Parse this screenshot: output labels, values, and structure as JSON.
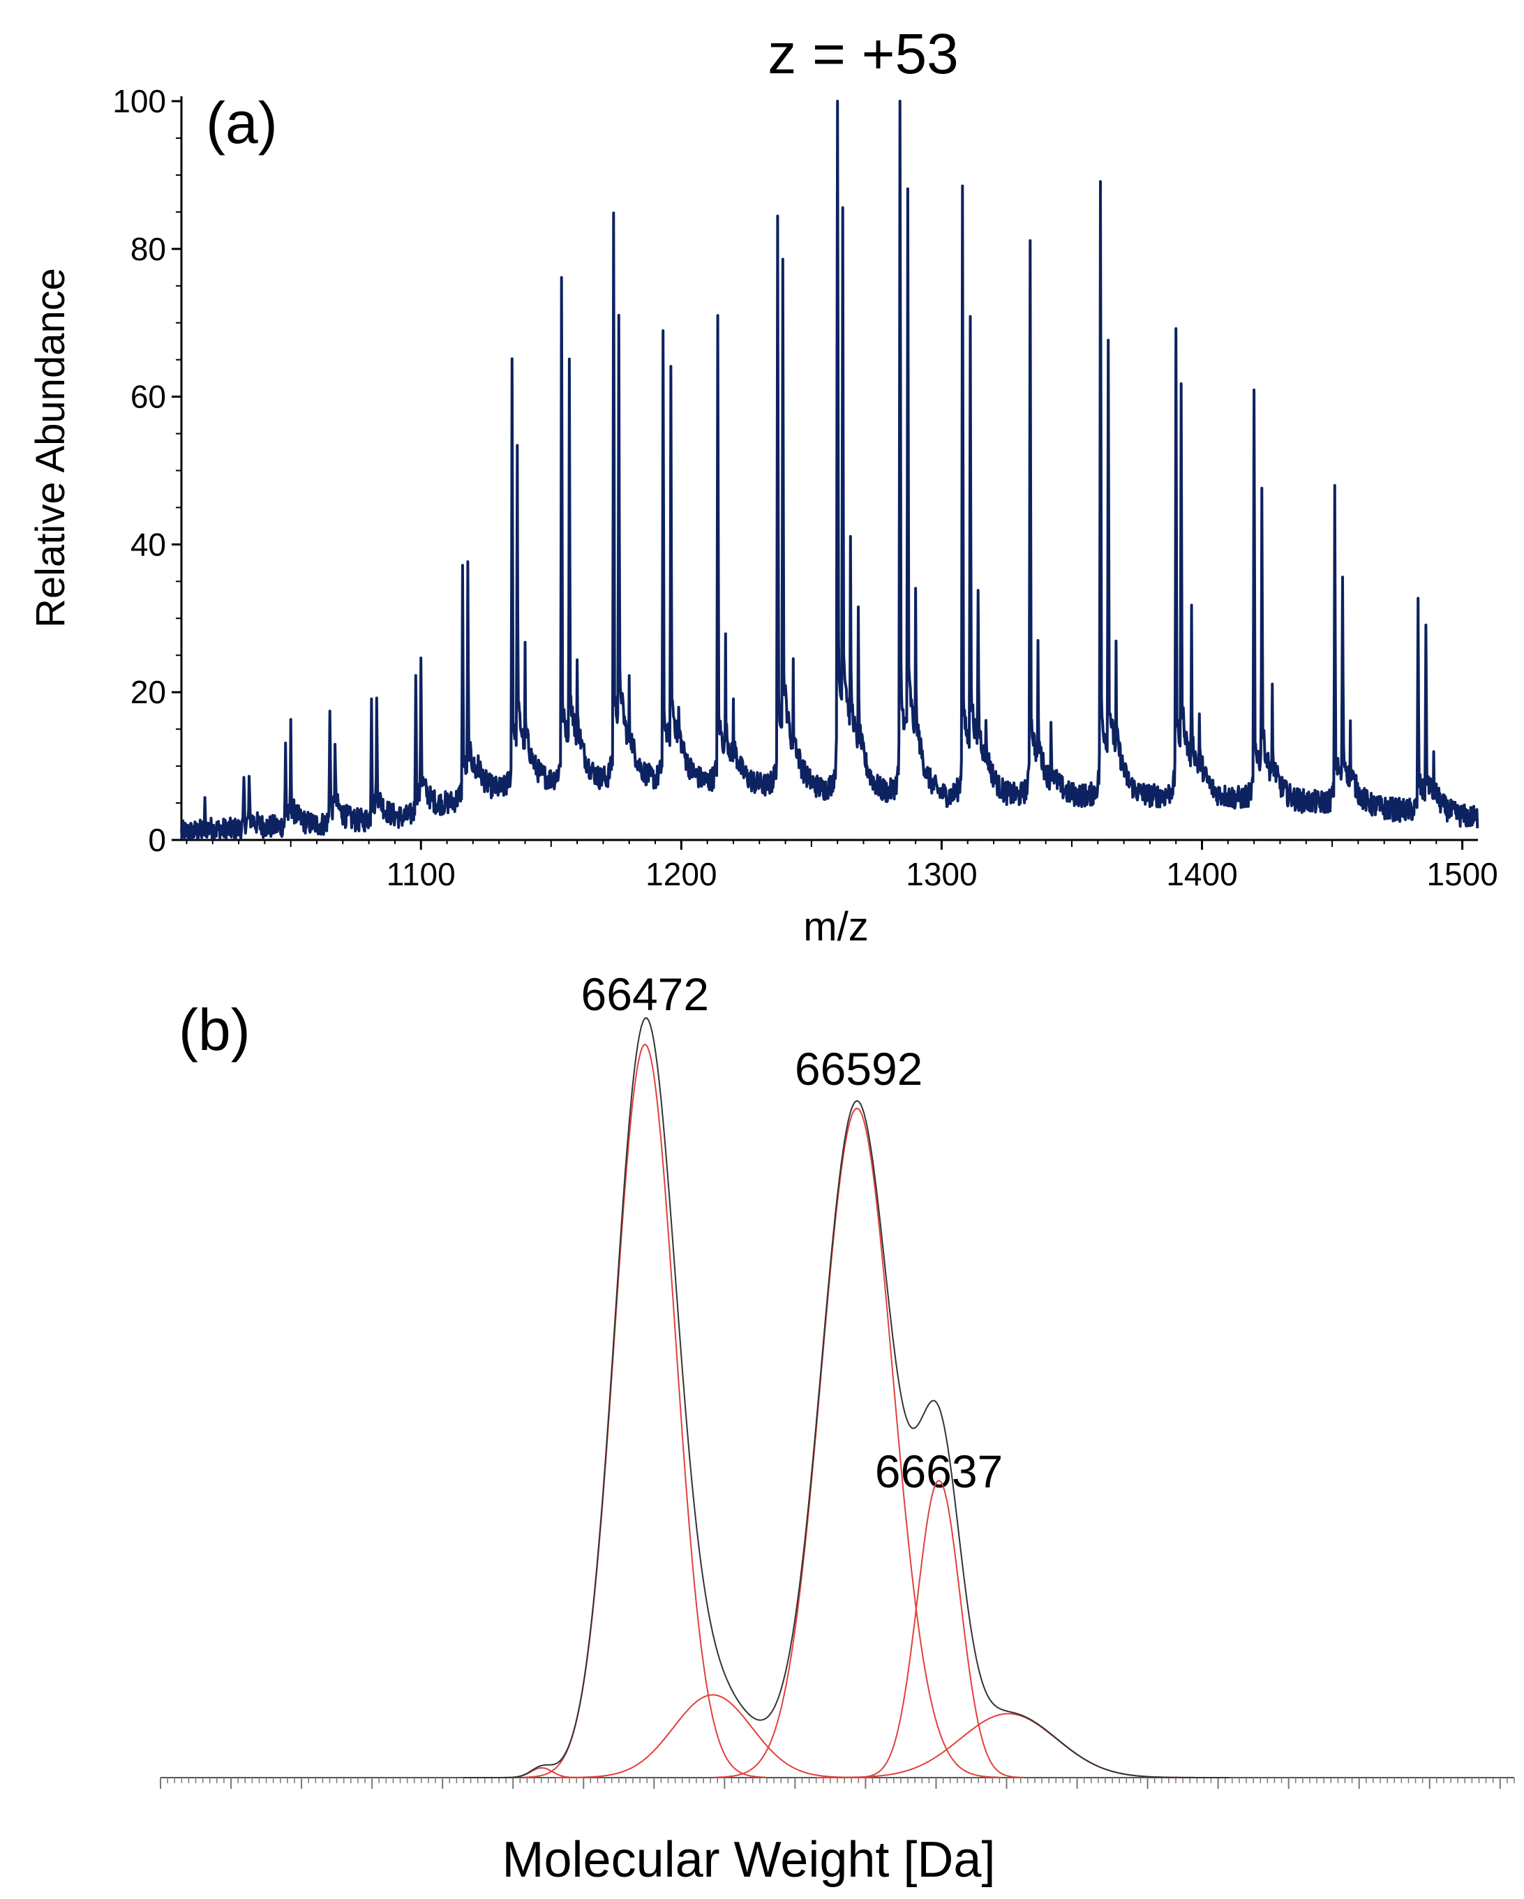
{
  "chart_data": [
    {
      "panel": "(a)",
      "type": "line",
      "title": "z = +53",
      "xlabel": "m/z",
      "ylabel": "Relative Abundance",
      "xlim": [
        1008,
        1506
      ],
      "ylim": [
        0,
        100
      ],
      "x_ticks": [
        1100,
        1200,
        1300,
        1400,
        1500
      ],
      "x_tick_labels": [
        "1100",
        "1200",
        "1300",
        "1400",
        "1500"
      ],
      "y_ticks": [
        0,
        20,
        40,
        60,
        80,
        100
      ],
      "y_tick_labels": [
        "0",
        "20",
        "40",
        "60",
        "80",
        "100"
      ],
      "color": "#0d2260",
      "baseline": [
        [
          1008,
          1
        ],
        [
          1060,
          2
        ],
        [
          1095,
          3
        ],
        [
          1120,
          6
        ],
        [
          1150,
          8
        ],
        [
          1200,
          8
        ],
        [
          1250,
          7
        ],
        [
          1300,
          6
        ],
        [
          1350,
          6
        ],
        [
          1400,
          6
        ],
        [
          1450,
          5
        ],
        [
          1506,
          3
        ]
      ],
      "peaks": [
        {
          "x": 1017,
          "y": 4
        },
        {
          "x": 1032,
          "y": 7
        },
        {
          "x": 1034,
          "y": 7
        },
        {
          "x": 1048,
          "y": 11
        },
        {
          "x": 1050,
          "y": 13
        },
        {
          "x": 1065,
          "y": 16
        },
        {
          "x": 1067,
          "y": 12
        },
        {
          "x": 1081,
          "y": 17
        },
        {
          "x": 1083,
          "y": 16
        },
        {
          "x": 1098,
          "y": 20
        },
        {
          "x": 1100,
          "y": 22
        },
        {
          "x": 1116,
          "y": 31
        },
        {
          "x": 1118,
          "y": 32
        },
        {
          "x": 1122,
          "y": 10
        },
        {
          "x": 1135,
          "y": 56
        },
        {
          "x": 1137,
          "y": 45
        },
        {
          "x": 1140,
          "y": 22
        },
        {
          "x": 1154,
          "y": 66
        },
        {
          "x": 1157,
          "y": 55
        },
        {
          "x": 1160,
          "y": 21
        },
        {
          "x": 1174,
          "y": 73
        },
        {
          "x": 1176,
          "y": 60
        },
        {
          "x": 1180,
          "y": 18
        },
        {
          "x": 1193,
          "y": 59
        },
        {
          "x": 1196,
          "y": 54
        },
        {
          "x": 1199,
          "y": 15
        },
        {
          "x": 1214,
          "y": 60
        },
        {
          "x": 1217,
          "y": 23
        },
        {
          "x": 1220,
          "y": 16
        },
        {
          "x": 1237,
          "y": 71
        },
        {
          "x": 1239,
          "y": 67
        },
        {
          "x": 1243,
          "y": 20
        },
        {
          "x": 1260,
          "y": 100
        },
        {
          "x": 1262,
          "y": 75
        },
        {
          "x": 1265,
          "y": 34
        },
        {
          "x": 1268,
          "y": 26
        },
        {
          "x": 1284,
          "y": 90
        },
        {
          "x": 1287,
          "y": 76
        },
        {
          "x": 1290,
          "y": 28
        },
        {
          "x": 1308,
          "y": 77
        },
        {
          "x": 1311,
          "y": 62
        },
        {
          "x": 1314,
          "y": 30
        },
        {
          "x": 1317,
          "y": 15
        },
        {
          "x": 1334,
          "y": 70
        },
        {
          "x": 1337,
          "y": 22
        },
        {
          "x": 1342,
          "y": 15
        },
        {
          "x": 1361,
          "y": 76
        },
        {
          "x": 1364,
          "y": 58
        },
        {
          "x": 1367,
          "y": 22
        },
        {
          "x": 1390,
          "y": 59
        },
        {
          "x": 1392,
          "y": 53
        },
        {
          "x": 1396,
          "y": 26
        },
        {
          "x": 1399,
          "y": 15
        },
        {
          "x": 1420,
          "y": 52
        },
        {
          "x": 1423,
          "y": 41
        },
        {
          "x": 1427,
          "y": 17
        },
        {
          "x": 1451,
          "y": 40
        },
        {
          "x": 1454,
          "y": 31
        },
        {
          "x": 1457,
          "y": 13
        },
        {
          "x": 1483,
          "y": 27
        },
        {
          "x": 1486,
          "y": 25
        },
        {
          "x": 1489,
          "y": 9
        }
      ]
    },
    {
      "panel": "(b)",
      "type": "line",
      "xlabel": "Molecular Weight [Da]",
      "xlim": [
        66200,
        66960
      ],
      "ylim": [
        0,
        1
      ],
      "annotations": [
        {
          "text": "66472",
          "x": 66472
        },
        {
          "text": "66592",
          "x": 66592
        },
        {
          "text": "66637",
          "x": 66637
        }
      ],
      "series": [
        {
          "name": "sum",
          "color": "#333333",
          "components": "all"
        },
        {
          "name": "fit components",
          "color": "#e0413c",
          "gaussians": [
            {
              "mu": 66414,
              "amp": 0.013,
              "sigma": 6
            },
            {
              "mu": 66472,
              "amp": 0.975,
              "sigma": 17
            },
            {
              "mu": 66510,
              "amp": 0.11,
              "sigma": 22
            },
            {
              "mu": 66591,
              "amp": 0.89,
              "sigma": 20
            },
            {
              "mu": 66637,
              "amp": 0.395,
              "sigma": 12
            },
            {
              "mu": 66676,
              "amp": 0.085,
              "sigma": 27
            }
          ]
        }
      ]
    }
  ]
}
